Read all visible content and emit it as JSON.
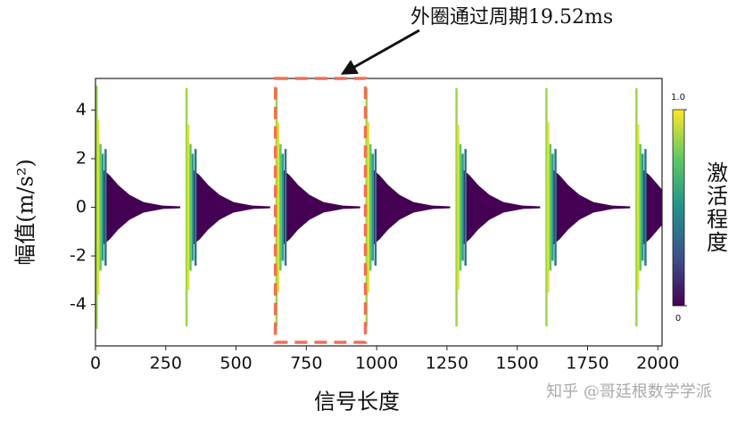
{
  "chart_data": {
    "type": "line",
    "annotation": "外圈通过周期19.52ms",
    "highlight": [
      640,
      960
    ],
    "xlabel": "信号长度",
    "ylabel": "幅值(m/s²)",
    "xlim": [
      0,
      2015
    ],
    "xticks": [
      0,
      250,
      500,
      750,
      1000,
      1250,
      1500,
      1750,
      2000
    ],
    "ylim": [
      -5.7,
      5.3
    ],
    "yticks": [
      -4,
      -2,
      0,
      2,
      4
    ],
    "colorbar": {
      "label": "激活程度",
      "lim": [
        0,
        1
      ],
      "ticks": [
        0,
        {
          "value": 1,
          "label": "1.0"
        }
      ],
      "colors": [
        "#440154",
        "#3b528b",
        "#21918c",
        "#5ec962",
        "#fde725"
      ]
    },
    "spikes": {
      "x": [
        4,
        10,
        18,
        26,
        36,
        324,
        330,
        338,
        346,
        356,
        644,
        650,
        658,
        666,
        676,
        964,
        970,
        978,
        986,
        996,
        1284,
        1290,
        1298,
        1306,
        1316,
        1604,
        1610,
        1618,
        1626,
        1636,
        1924,
        1930,
        1938,
        1946,
        1956
      ],
      "values": [
        5.0,
        3.6,
        2.6,
        2.2,
        2.4,
        4.9,
        3.4,
        2.6,
        2.2,
        2.4,
        4.9,
        3.5,
        2.6,
        2.2,
        2.4,
        4.9,
        3.5,
        2.6,
        2.2,
        2.4,
        4.9,
        3.4,
        2.6,
        2.2,
        2.4,
        4.9,
        3.5,
        2.6,
        2.2,
        2.4,
        4.9,
        3.4,
        2.6,
        2.2,
        2.4
      ],
      "activation": [
        0.85,
        0.95,
        0.75,
        0.55,
        0.4,
        0.85,
        0.95,
        0.75,
        0.55,
        0.4,
        0.85,
        0.95,
        0.75,
        0.55,
        0.4,
        0.85,
        0.95,
        0.75,
        0.55,
        0.4,
        0.85,
        0.95,
        0.75,
        0.55,
        0.4,
        0.85,
        0.95,
        0.75,
        0.55,
        0.4,
        0.85,
        0.95,
        0.75,
        0.55,
        0.4
      ]
    },
    "envelope": {
      "activation": 0,
      "x": [
        30,
        50,
        80,
        120,
        170,
        240,
        300,
        310,
        350,
        370,
        400,
        440,
        490,
        560,
        620,
        630,
        670,
        690,
        720,
        760,
        810,
        880,
        940,
        950,
        990,
        1010,
        1040,
        1080,
        1130,
        1200,
        1260,
        1270,
        1310,
        1330,
        1360,
        1400,
        1450,
        1520,
        1580,
        1590,
        1630,
        1650,
        1680,
        1720,
        1770,
        1840,
        1900,
        1910,
        1950,
        1970,
        2000,
        2015
      ],
      "values": [
        1.5,
        1.3,
        0.9,
        0.5,
        0.2,
        0.05,
        0.02,
        null,
        1.5,
        1.3,
        0.9,
        0.5,
        0.2,
        0.05,
        0.02,
        null,
        1.5,
        1.3,
        0.9,
        0.5,
        0.2,
        0.05,
        0.02,
        null,
        1.5,
        1.3,
        0.9,
        0.5,
        0.2,
        0.05,
        0.02,
        null,
        1.5,
        1.3,
        0.9,
        0.5,
        0.2,
        0.05,
        0.02,
        null,
        1.5,
        1.3,
        0.9,
        0.5,
        0.2,
        0.05,
        0.02,
        null,
        1.5,
        1.3,
        0.9,
        0.7
      ]
    }
  },
  "watermark": "知乎 @哥廷根数学学派"
}
